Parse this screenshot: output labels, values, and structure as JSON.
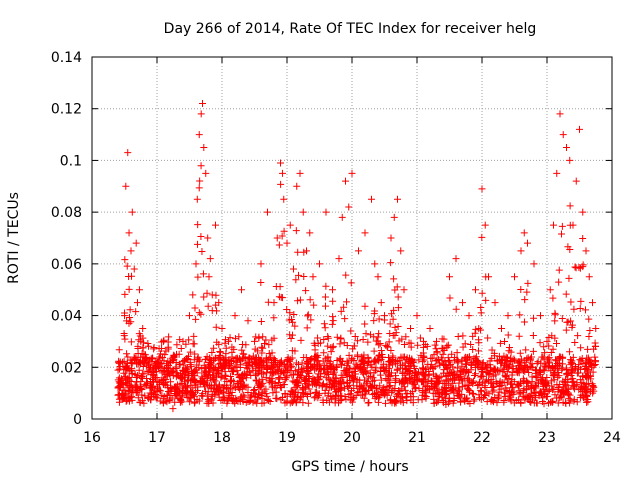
{
  "chart_data": {
    "type": "scatter",
    "title": "Day 266 of 2014, Rate Of TEC Index for receiver helg",
    "xlabel": "GPS time / hours",
    "ylabel": "ROTI / TECUs",
    "xlim": [
      16,
      24
    ],
    "ylim": [
      0,
      0.14
    ],
    "xticks": [
      16,
      17,
      18,
      19,
      20,
      21,
      22,
      23,
      24
    ],
    "yticks": [
      0,
      0.02,
      0.04,
      0.06,
      0.08,
      0.1,
      0.12,
      0.14
    ],
    "xtick_labels": [
      "16",
      "17",
      "18",
      "19",
      "20",
      "21",
      "22",
      "23",
      "24"
    ],
    "ytick_labels": [
      "0",
      "0.02",
      "0.04",
      "0.06",
      "0.08",
      "0.1",
      "0.12",
      "0.14"
    ],
    "grid": true,
    "marker": "+",
    "color": "#ff0000",
    "series": [
      {
        "name": "ROTI",
        "x": [
          16.4,
          16.45,
          16.5,
          16.52,
          16.55,
          16.57,
          16.6,
          16.62,
          16.65,
          16.68,
          16.7,
          16.73,
          16.75,
          16.78,
          16.8,
          16.85,
          16.9,
          16.95,
          17.0,
          17.05,
          17.1,
          17.2,
          17.3,
          17.4,
          17.5,
          17.55,
          17.6,
          17.62,
          17.65,
          17.68,
          17.7,
          17.72,
          17.75,
          17.78,
          17.8,
          17.82,
          17.85,
          17.9,
          17.95,
          18.0,
          18.1,
          18.2,
          18.3,
          18.4,
          18.5,
          18.6,
          18.7,
          18.8,
          18.85,
          18.9,
          18.93,
          18.95,
          19.0,
          19.05,
          19.1,
          19.15,
          19.2,
          19.25,
          19.3,
          19.35,
          19.4,
          19.5,
          19.6,
          19.7,
          19.8,
          19.85,
          19.9,
          19.95,
          20.0,
          20.1,
          20.2,
          20.3,
          20.35,
          20.4,
          20.45,
          20.5,
          20.6,
          20.65,
          20.7,
          20.75,
          20.8,
          20.9,
          21.0,
          21.1,
          21.2,
          21.3,
          21.4,
          21.5,
          21.6,
          21.7,
          21.8,
          21.9,
          21.95,
          22.0,
          22.05,
          22.1,
          22.2,
          22.3,
          22.4,
          22.5,
          22.6,
          22.65,
          22.7,
          22.8,
          22.9,
          23.0,
          23.05,
          23.1,
          23.15,
          23.2,
          23.25,
          23.3,
          23.35,
          23.4,
          23.45,
          23.5,
          23.55,
          23.6,
          23.65,
          23.7,
          23.75
        ],
        "y": [
          0.012,
          0.015,
          0.04,
          0.09,
          0.103,
          0.072,
          0.065,
          0.08,
          0.058,
          0.068,
          0.045,
          0.05,
          0.03,
          0.035,
          0.025,
          0.022,
          0.02,
          0.018,
          0.016,
          0.02,
          0.03,
          0.022,
          0.025,
          0.03,
          0.04,
          0.048,
          0.06,
          0.085,
          0.11,
          0.118,
          0.122,
          0.105,
          0.095,
          0.07,
          0.055,
          0.062,
          0.048,
          0.075,
          0.045,
          0.035,
          0.03,
          0.04,
          0.05,
          0.038,
          0.03,
          0.06,
          0.08,
          0.045,
          0.07,
          0.099,
          0.095,
          0.085,
          0.068,
          0.075,
          0.058,
          0.09,
          0.095,
          0.08,
          0.065,
          0.072,
          0.055,
          0.06,
          0.08,
          0.05,
          0.062,
          0.078,
          0.092,
          0.082,
          0.095,
          0.065,
          0.072,
          0.085,
          0.06,
          0.055,
          0.045,
          0.04,
          0.07,
          0.078,
          0.085,
          0.065,
          0.05,
          0.035,
          0.04,
          0.03,
          0.035,
          0.03,
          0.025,
          0.055,
          0.062,
          0.045,
          0.04,
          0.05,
          0.035,
          0.089,
          0.075,
          0.055,
          0.045,
          0.035,
          0.04,
          0.055,
          0.065,
          0.072,
          0.068,
          0.06,
          0.04,
          0.03,
          0.05,
          0.075,
          0.095,
          0.118,
          0.11,
          0.105,
          0.1,
          0.075,
          0.092,
          0.112,
          0.08,
          0.065,
          0.055,
          0.045,
          0.035
        ]
      }
    ]
  }
}
